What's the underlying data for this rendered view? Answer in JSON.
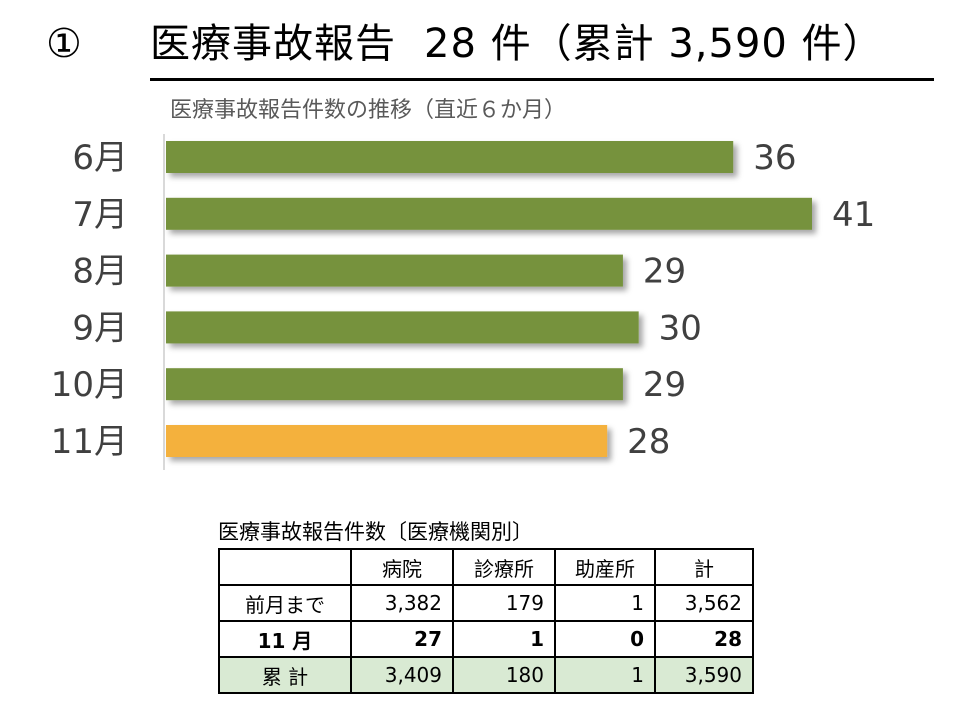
{
  "header": {
    "number_label": "①",
    "title_main": "医療事故報告",
    "title_count": "28 件（累計 3,590 件）"
  },
  "chart_data": {
    "type": "bar",
    "orientation": "horizontal",
    "title": "医療事故報告件数の推移（直近６か月）",
    "categories": [
      "6月",
      "7月",
      "8月",
      "9月",
      "10月",
      "11月"
    ],
    "values": [
      36,
      41,
      29,
      30,
      29,
      28
    ],
    "xlim": [
      0,
      47
    ],
    "colors": [
      "#76923c",
      "#76923c",
      "#76923c",
      "#76923c",
      "#76923c",
      "#f4b13c"
    ],
    "grid": false,
    "legend": "none"
  },
  "table": {
    "title": "医療事故報告件数〔医療機関別〕",
    "headers": [
      "",
      "病院",
      "診療所",
      "助産所",
      "計"
    ],
    "rows": [
      [
        "前月まで",
        "3,382",
        "179",
        "1",
        "3,562"
      ],
      [
        "11 月",
        "27",
        "1",
        "0",
        "28"
      ],
      [
        "累 計",
        "3,409",
        "180",
        "1",
        "3,590"
      ]
    ],
    "total_row_color": "#d9ead3"
  }
}
